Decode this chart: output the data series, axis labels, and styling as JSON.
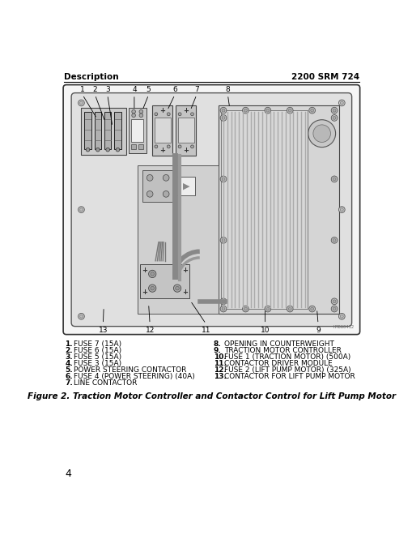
{
  "header_left": "Description",
  "header_right": "2200 SRM 724",
  "page_number": "4",
  "figure_caption": "Figure 2. Traction Motor Controller and Contactor Control for Lift Pump Motor",
  "watermark": "HM060412",
  "legend_left": [
    [
      "1.",
      "FUSE 7 (15A)"
    ],
    [
      "2.",
      "FUSE 6 (15A)"
    ],
    [
      "3.",
      "FUSE 5 (15A)"
    ],
    [
      "4.",
      "FUSE 3 (15A)"
    ],
    [
      "5.",
      "POWER STEERING CONTACTOR"
    ],
    [
      "6.",
      "FUSE 4 (POWER STEERING) (40A)"
    ],
    [
      "7.",
      "LINE CONTACTOR"
    ]
  ],
  "legend_right": [
    [
      "8.",
      "OPENING IN COUNTERWEIGHT"
    ],
    [
      "9.",
      "TRACTION MOTOR CONTROLLER"
    ],
    [
      "10.",
      "FUSE 1 (TRACTION MOTOR) (500A)"
    ],
    [
      "11.",
      "CONTACTOR DRIVER MODULE"
    ],
    [
      "12.",
      "FUSE 2 (LIFT PUMP MOTOR) (325A)"
    ],
    [
      "13.",
      "CONTACTOR FOR LIFT PUMP MOTOR"
    ]
  ],
  "bg_color": "#ffffff",
  "text_color": "#000000",
  "header_fontsize": 7.5,
  "legend_fontsize": 6.5,
  "caption_fontsize": 7.5
}
